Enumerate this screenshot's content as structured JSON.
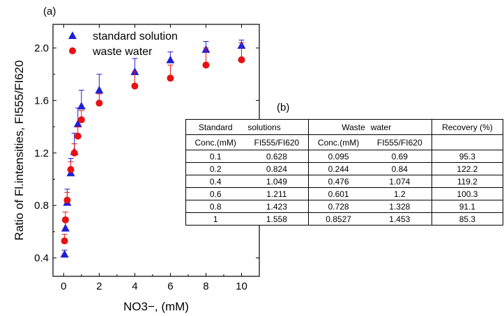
{
  "panel_a_label": "(a)",
  "panel_b_label": "(b)",
  "chart_data": {
    "type": "scatter",
    "title": "",
    "xlabel": "NO3−, (mM)",
    "ylabel": "Ratio of Fl.intensities, FI555/FI620",
    "xlim": [
      -0.6,
      11.0
    ],
    "ylim": [
      0.26,
      2.18
    ],
    "x_ticks": [
      0,
      2,
      4,
      6,
      8,
      10
    ],
    "y_ticks": [
      0.4,
      0.8,
      1.2,
      1.6,
      2.0
    ],
    "legend_position": "top-left",
    "series": [
      {
        "name": "standard solution",
        "marker": "triangle",
        "color": "#1f1fd6",
        "x": [
          0.05,
          0.1,
          0.2,
          0.4,
          0.6,
          0.8,
          1,
          2,
          4,
          6,
          8,
          10
        ],
        "y": [
          0.43,
          0.628,
          0.824,
          1.049,
          1.211,
          1.423,
          1.558,
          1.68,
          1.82,
          1.91,
          1.99,
          2.02
        ],
        "err": [
          0.03,
          0.08,
          0.1,
          0.11,
          0.14,
          0.12,
          0.12,
          0.12,
          0.1,
          0.06,
          0.06,
          0.04
        ]
      },
      {
        "name": "waste water",
        "marker": "circle",
        "color": "#e81010",
        "x": [
          0.05,
          0.1,
          0.2,
          0.4,
          0.6,
          0.8,
          1,
          2,
          4,
          6,
          8,
          10
        ],
        "y": [
          0.53,
          0.69,
          0.84,
          1.074,
          1.2,
          1.328,
          1.453,
          1.58,
          1.71,
          1.77,
          1.87,
          1.91
        ],
        "err": [
          0.05,
          0.06,
          0.06,
          0.06,
          0.07,
          0.07,
          0.07,
          0.07,
          0.11,
          0.1,
          0.13,
          0.13
        ]
      }
    ]
  },
  "table": {
    "header1": [
      "Standard",
      "solutions",
      "Waste",
      "water",
      "Recovery (%)"
    ],
    "header2": [
      "Conc.(mM)",
      "FI555/FI620",
      "Conc.(mM)",
      "FI555/FI620",
      ""
    ],
    "rows": [
      [
        "0.1",
        "0.628",
        "0.095",
        "0.69",
        "95.3"
      ],
      [
        "0.2",
        "0.824",
        "0.244",
        "0.84",
        "122.2"
      ],
      [
        "0.4",
        "1.049",
        "0.476",
        "1.074",
        "119.2"
      ],
      [
        "0.6",
        "1.211",
        "0.601",
        "1.2",
        "100.3"
      ],
      [
        "0.8",
        "1.423",
        "0.728",
        "1.328",
        "91.1"
      ],
      [
        "1",
        "1.558",
        "0.8527",
        "1.453",
        "85.3"
      ]
    ]
  }
}
